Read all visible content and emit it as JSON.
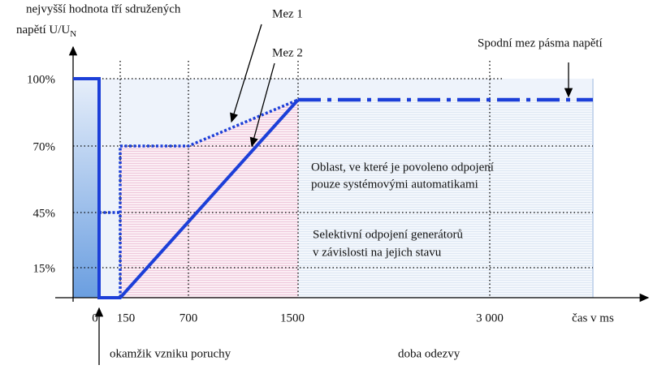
{
  "axes": {
    "y_title_line1": "nejvyšší hodnota tří sdružených",
    "y_title_line2": "napětí U/U",
    "y_title_subscript": "N",
    "y_labels": [
      "100%",
      "70%",
      "45%",
      "15%"
    ],
    "x_labels": [
      "0",
      "150",
      "700",
      "1500",
      "3 000"
    ],
    "x_title": "čas v ms"
  },
  "annotations": {
    "limit_1": "Mez 1",
    "limit_2": "Mez 2",
    "lower_band_limit": "Spodní mez pásma napětí",
    "region_upper_line1": "Oblast, ve které je povoleno odpojení",
    "region_upper_line2": "pouze systémovými automatikami",
    "region_lower_line1": "Selektivní odpojení generátorů",
    "region_lower_line2": "v závislosti na jejich stavu",
    "fault_moment": "okamžik vzniku poruchy",
    "response_time": "doba odezvy"
  }
}
